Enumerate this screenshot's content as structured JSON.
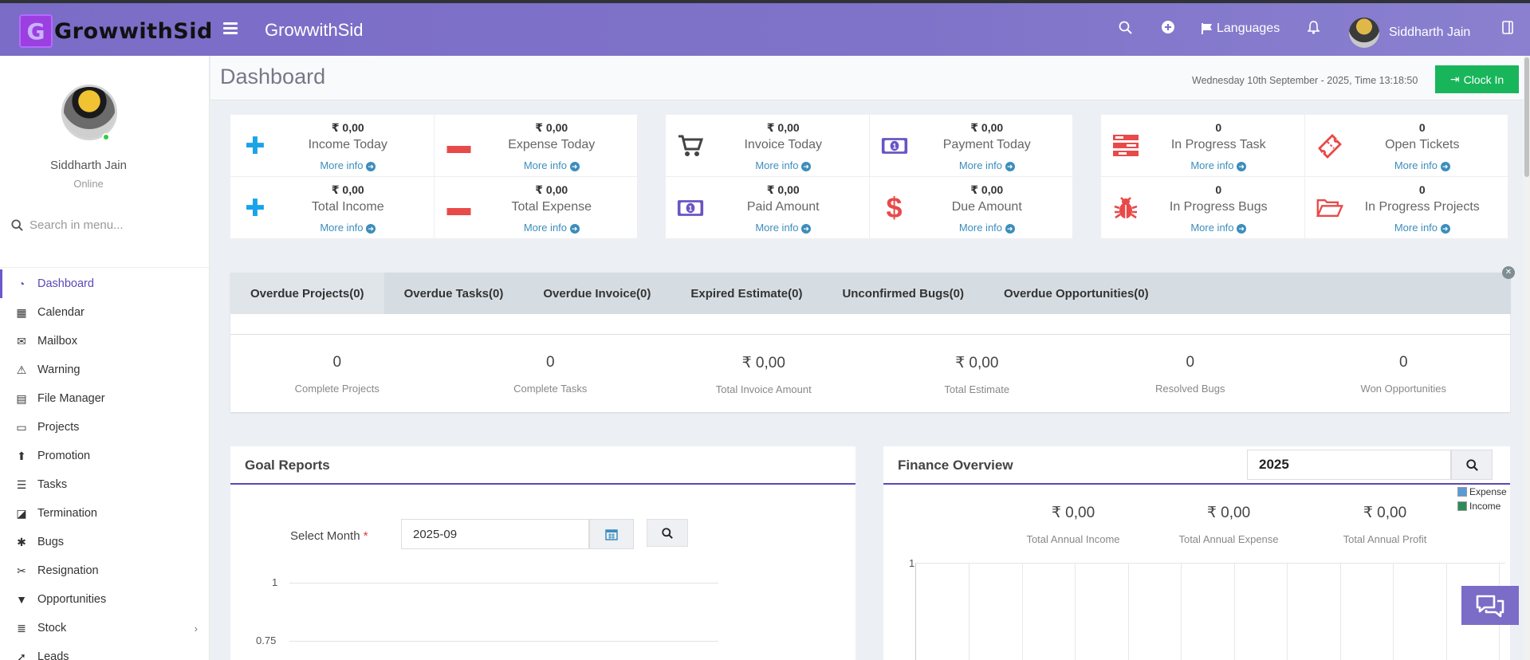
{
  "header": {
    "logo_mark": "G",
    "logo_text": "GrowwithSid",
    "app_title": "GrowwithSid",
    "languages_label": "Languages",
    "user_name": "Siddharth Jain",
    "accent_color": "#7b6cc7"
  },
  "sidebar": {
    "profile_name": "Siddharth Jain",
    "profile_status": "Online",
    "search_placeholder": "Search in menu...",
    "items": [
      {
        "label": "Dashboard",
        "icon": "dashboard-icon",
        "active": true
      },
      {
        "label": "Calendar",
        "icon": "calendar-icon"
      },
      {
        "label": "Mailbox",
        "icon": "envelope-icon"
      },
      {
        "label": "Warning",
        "icon": "warning-icon"
      },
      {
        "label": "File Manager",
        "icon": "file-icon"
      },
      {
        "label": "Projects",
        "icon": "folder-open-icon"
      },
      {
        "label": "Promotion",
        "icon": "arrow-circle-up-icon"
      },
      {
        "label": "Tasks",
        "icon": "tasks-icon"
      },
      {
        "label": "Termination",
        "icon": "eraser-icon"
      },
      {
        "label": "Bugs",
        "icon": "bug-icon"
      },
      {
        "label": "Resignation",
        "icon": "scissors-icon"
      },
      {
        "label": "Opportunities",
        "icon": "filter-icon"
      },
      {
        "label": "Stock",
        "icon": "database-icon",
        "has_children": true
      },
      {
        "label": "Leads",
        "icon": "rocket-icon"
      }
    ]
  },
  "pagebar": {
    "title": "Dashboard",
    "datetime": "Wednesday 10th September - 2025,  Time  13:18:50",
    "clockin_label": "Clock In"
  },
  "stats": {
    "more_info": "More info",
    "income_today": {
      "value": "₹ 0,00",
      "label": "Income Today"
    },
    "expense_today": {
      "value": "₹ 0,00",
      "label": "Expense Today"
    },
    "total_income": {
      "value": "₹ 0,00",
      "label": "Total Income"
    },
    "total_expense": {
      "value": "₹ 0,00",
      "label": "Total Expense"
    },
    "invoice_today": {
      "value": "₹ 0,00",
      "label": "Invoice Today"
    },
    "payment_today": {
      "value": "₹ 0,00",
      "label": "Payment Today"
    },
    "paid_amount": {
      "value": "₹ 0,00",
      "label": "Paid Amount"
    },
    "due_amount": {
      "value": "₹ 0,00",
      "label": "Due Amount"
    },
    "in_progress_task": {
      "value": "0",
      "label": "In Progress Task"
    },
    "open_tickets": {
      "value": "0",
      "label": "Open Tickets"
    },
    "in_progress_bugs": {
      "value": "0",
      "label": "In Progress Bugs"
    },
    "in_progress_projects": {
      "value": "0",
      "label": "In Progress Projects"
    }
  },
  "overdue": {
    "tabs": [
      "Overdue Projects(0)",
      "Overdue Tasks(0)",
      "Overdue Invoice(0)",
      "Expired Estimate(0)",
      "Unconfirmed Bugs(0)",
      "Overdue Opportunities(0)"
    ],
    "stats": [
      {
        "value": "0",
        "label": "Complete Projects"
      },
      {
        "value": "0",
        "label": "Complete Tasks"
      },
      {
        "value": "₹ 0,00",
        "label": "Total Invoice Amount"
      },
      {
        "value": "₹ 0,00",
        "label": "Total Estimate"
      },
      {
        "value": "0",
        "label": "Resolved Bugs"
      },
      {
        "value": "0",
        "label": "Won Opportunities"
      }
    ]
  },
  "goal": {
    "title": "Goal Reports",
    "select_month_label": "Select Month",
    "required_mark": "*",
    "month_value": "2025-09",
    "ticks": [
      "1",
      "0.75"
    ]
  },
  "finance": {
    "title": "Finance Overview",
    "year_value": "2025",
    "legend": [
      {
        "name": "Expense",
        "color": "#5b9bd5"
      },
      {
        "name": "Income",
        "color": "#2e8b57"
      }
    ],
    "stats": [
      {
        "value": "₹ 0,00",
        "label": "Total Annual Income"
      },
      {
        "value": "₹ 0,00",
        "label": "Total Annual Expense"
      },
      {
        "value": "₹ 0,00",
        "label": "Total Annual Profit"
      }
    ],
    "tick": "1"
  }
}
